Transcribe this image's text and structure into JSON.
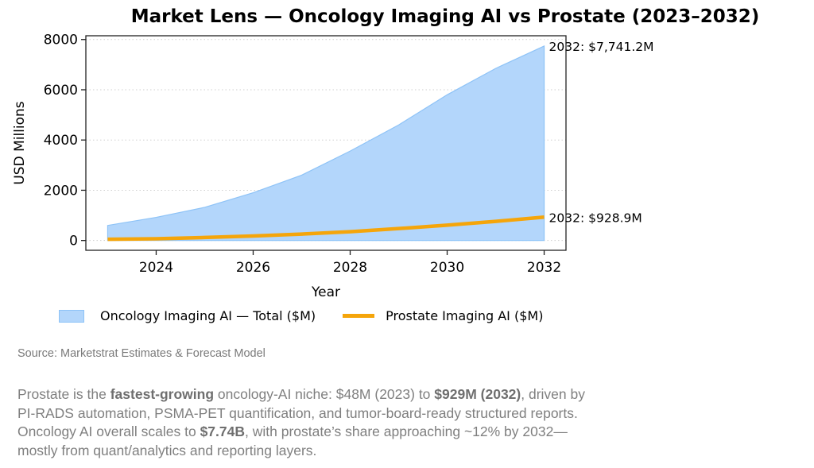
{
  "chart_data": {
    "type": "area",
    "title": "Market Lens — Oncology Imaging AI vs Prostate (2023–2032)",
    "xlabel": "Year",
    "ylabel": "USD Millions",
    "x": [
      2023,
      2024,
      2025,
      2026,
      2027,
      2028,
      2029,
      2030,
      2031,
      2032
    ],
    "xlim": [
      2022.55,
      2032.45
    ],
    "ylim": [
      -390,
      8150
    ],
    "xticks": [
      2024,
      2026,
      2028,
      2030,
      2032
    ],
    "yticks": [
      0,
      2000,
      4000,
      6000,
      8000
    ],
    "grid": "horizontal-dotted",
    "series": [
      {
        "name": "Oncology Imaging AI — Total ($M)",
        "kind": "area",
        "color": "#b3d6fb",
        "edge_color": "#8ec3f7",
        "values": [
          600,
          920,
          1320,
          1900,
          2600,
          3560,
          4600,
          5800,
          6850,
          7741.2
        ]
      },
      {
        "name": "Prostate Imaging AI ($M)",
        "kind": "line",
        "color": "#f5a50a",
        "values": [
          48,
          70,
          120,
          180,
          255,
          350,
          475,
          610,
          760,
          928.9
        ]
      }
    ],
    "annotations": [
      {
        "series": 0,
        "x": 2032,
        "text": "2032: $7,741.2M"
      },
      {
        "series": 1,
        "x": 2032,
        "text": "2032: $928.9M"
      }
    ],
    "legend": "bottom-left"
  },
  "source": "Source: Marketstrat Estimates & Forecast Model",
  "summary": {
    "segments": [
      {
        "text": "Prostate is the ",
        "bold": false
      },
      {
        "text": "fastest-growing",
        "bold": true
      },
      {
        "text": " oncology-AI niche: $48M (2023) to ",
        "bold": false
      },
      {
        "text": "$929M (2032)",
        "bold": true
      },
      {
        "text": ", driven by PI-RADS automation, PSMA-PET quantification, and tumor-board-ready structured reports. Oncology AI overall scales to ",
        "bold": false
      },
      {
        "text": "$7.74B",
        "bold": true
      },
      {
        "text": ", with prostate’s share approaching ~12% by 2032—mostly from quant/analytics and reporting layers.",
        "bold": false
      }
    ]
  }
}
